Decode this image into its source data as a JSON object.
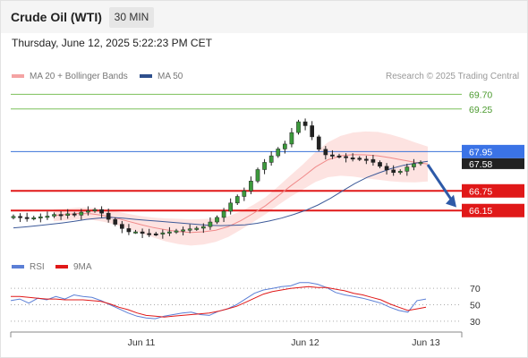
{
  "header": {
    "title": "Crude Oil (WTI)",
    "timeframe": "30 MIN",
    "timestamp": "Thursday, June 12, 2025 5:22:23 PM CET",
    "copyright": "Research © 2025 Trading Central"
  },
  "legend": {
    "bollinger": {
      "label": "MA 20 + Bollinger Bands",
      "color": "#f4a3a3"
    },
    "ma50": {
      "label": "MA 50",
      "color": "#2e4f8c"
    },
    "rsi": {
      "label": "RSI",
      "color": "#5b7fd6"
    },
    "ma9": {
      "label": "9MA",
      "color": "#e01818"
    }
  },
  "chart_data": [
    {
      "type": "candlestick",
      "title": "Crude Oil (WTI)",
      "ylim": [
        65.2,
        69.9
      ],
      "x_ticks": [
        "Jun 11",
        "Jun 12",
        "Jun 13"
      ],
      "price_levels": [
        {
          "label": "69.70",
          "value": 69.7,
          "kind": "resistance",
          "color": "#7cc05a"
        },
        {
          "label": "69.25",
          "value": 69.25,
          "kind": "resistance",
          "color": "#7cc05a"
        },
        {
          "label": "67.95",
          "value": 67.95,
          "kind": "pivot",
          "color": "#3a72d8"
        },
        {
          "label": "66.75",
          "value": 66.75,
          "kind": "support",
          "color": "#e01818"
        },
        {
          "label": "66.15",
          "value": 66.15,
          "kind": "support",
          "color": "#e01818"
        }
      ],
      "last_price": {
        "label": "67.58",
        "value": 67.58
      },
      "forecast_arrow": {
        "from": 67.55,
        "to": 66.25,
        "color": "#2e5aa8"
      },
      "close_series": [
        65.97,
        65.94,
        65.91,
        65.93,
        65.96,
        65.98,
        66.03,
        66.0,
        66.05,
        66.01,
        66.1,
        66.14,
        66.18,
        66.07,
        65.88,
        65.73,
        65.6,
        65.5,
        65.5,
        65.45,
        65.44,
        65.43,
        65.47,
        65.5,
        65.53,
        65.56,
        65.59,
        65.61,
        65.66,
        65.8,
        65.94,
        66.13,
        66.38,
        66.58,
        66.75,
        67.05,
        67.4,
        67.62,
        67.82,
        68.03,
        68.18,
        68.53,
        68.86,
        68.74,
        68.4,
        68.02,
        67.85,
        67.82,
        67.8,
        67.76,
        67.75,
        67.72,
        67.71,
        67.62,
        67.5,
        67.39,
        67.31,
        67.35,
        67.48,
        67.58,
        67.62
      ],
      "ma50_series": [
        65.62,
        65.65,
        65.69,
        65.73,
        65.77,
        65.82,
        65.88,
        65.92,
        65.94,
        65.92,
        65.88,
        65.85,
        65.82,
        65.79,
        65.76,
        65.73,
        65.7,
        65.69,
        65.7,
        65.71,
        65.76,
        65.83,
        65.92,
        66.03,
        66.16,
        66.32,
        66.52,
        66.75,
        66.97,
        67.16,
        67.3,
        67.43,
        67.53,
        67.6,
        67.65
      ],
      "ma20_series": [
        66.0,
        66.03,
        66.06,
        66.05,
        66.0,
        65.92,
        65.82,
        65.72,
        65.63,
        65.56,
        65.51,
        65.48,
        65.5,
        65.55,
        65.66,
        65.84,
        66.06,
        66.3,
        66.6,
        66.9,
        67.18,
        67.48,
        67.7,
        67.82,
        67.86,
        67.85,
        67.82,
        67.76,
        67.69,
        67.62,
        67.57
      ]
    },
    {
      "type": "line",
      "title": "RSI",
      "ylim": [
        20,
        80
      ],
      "y_ticks": [
        "70",
        "50",
        "30"
      ],
      "series": [
        {
          "name": "RSI",
          "values": [
            55,
            57,
            52,
            58,
            56,
            60,
            57,
            62,
            60,
            59,
            55,
            50,
            45,
            40,
            36,
            34,
            33,
            36,
            38,
            40,
            41,
            38,
            37,
            42,
            45,
            50,
            57,
            64,
            68,
            70,
            72,
            73,
            77,
            77,
            75,
            71,
            65,
            62,
            60,
            58,
            55,
            52,
            47,
            43,
            41,
            55,
            57
          ]
        },
        {
          "name": "9MA",
          "values": [
            60,
            60,
            59,
            58,
            57,
            57,
            56,
            56,
            56,
            55,
            54,
            51,
            47,
            44,
            40,
            37,
            36,
            35,
            36,
            37,
            38,
            39,
            40,
            42,
            45,
            48,
            53,
            58,
            63,
            66,
            68,
            70,
            71,
            72,
            71,
            71,
            69,
            67,
            64,
            62,
            59,
            56,
            51,
            47,
            43,
            45,
            47
          ]
        }
      ]
    }
  ]
}
